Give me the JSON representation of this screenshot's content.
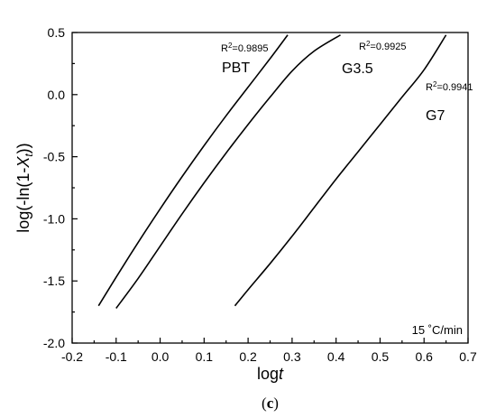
{
  "chart_data": {
    "type": "line",
    "xlabel": {
      "prefix": "log",
      "italic": "t"
    },
    "ylabel": {
      "prefix": "log(-ln(1-",
      "italic": "X",
      "sub": "t",
      "suffix": "))"
    },
    "xlim": [
      -0.2,
      0.7
    ],
    "ylim": [
      -2.0,
      0.5
    ],
    "x_ticks": [
      -0.2,
      -0.1,
      0.0,
      0.1,
      0.2,
      0.3,
      0.4,
      0.5,
      0.6,
      0.7
    ],
    "x_tick_labels": [
      "-0.2",
      "-0.1",
      "0.0",
      "0.1",
      "0.2",
      "0.3",
      "0.4",
      "0.5",
      "0.6",
      "0.7"
    ],
    "y_ticks": [
      -2.0,
      -1.5,
      -1.0,
      -0.5,
      0.0,
      0.5
    ],
    "y_tick_labels": [
      "-2.0",
      "-1.5",
      "-1.0",
      "-0.5",
      "0.0",
      "0.5"
    ],
    "grid": false,
    "series": [
      {
        "name": "PBT",
        "r2_value": "0.9895",
        "points": [
          [
            -0.14,
            -1.7
          ],
          [
            -0.1,
            -1.47
          ],
          [
            -0.05,
            -1.19
          ],
          [
            0.0,
            -0.92
          ],
          [
            0.05,
            -0.66
          ],
          [
            0.1,
            -0.41
          ],
          [
            0.15,
            -0.17
          ],
          [
            0.2,
            0.06
          ],
          [
            0.25,
            0.29
          ],
          [
            0.29,
            0.48
          ]
        ]
      },
      {
        "name": "G3.5",
        "r2_value": "0.9925",
        "points": [
          [
            -0.1,
            -1.72
          ],
          [
            -0.05,
            -1.48
          ],
          [
            0.0,
            -1.22
          ],
          [
            0.05,
            -0.96
          ],
          [
            0.1,
            -0.71
          ],
          [
            0.15,
            -0.47
          ],
          [
            0.2,
            -0.24
          ],
          [
            0.25,
            -0.02
          ],
          [
            0.3,
            0.19
          ],
          [
            0.35,
            0.35
          ],
          [
            0.41,
            0.48
          ]
        ]
      },
      {
        "name": "G7",
        "r2_value": "0.9941",
        "points": [
          [
            0.17,
            -1.7
          ],
          [
            0.2,
            -1.57
          ],
          [
            0.25,
            -1.36
          ],
          [
            0.3,
            -1.14
          ],
          [
            0.35,
            -0.91
          ],
          [
            0.4,
            -0.68
          ],
          [
            0.45,
            -0.46
          ],
          [
            0.5,
            -0.24
          ],
          [
            0.55,
            -0.02
          ],
          [
            0.6,
            0.2
          ],
          [
            0.65,
            0.48
          ]
        ]
      }
    ],
    "r2_prefix": "R",
    "r2_sup": "2",
    "r2_eq": "=",
    "annotation": "15 ˚C/min"
  },
  "caption": {
    "open": "(",
    "bold": "c",
    "close": ")"
  }
}
